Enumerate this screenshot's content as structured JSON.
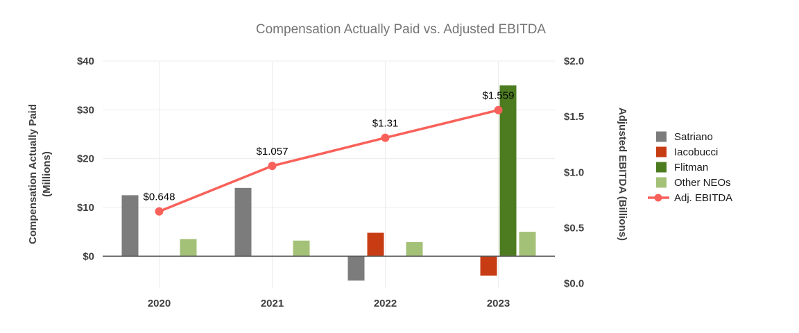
{
  "title": "Compensation Actually Paid vs. Adjusted EBITDA",
  "chart_data": {
    "type": "bar",
    "subtype": "grouped-bars-with-line",
    "title": "Compensation Actually Paid vs. Adjusted EBITDA",
    "categories": [
      "2020",
      "2021",
      "2022",
      "2023"
    ],
    "bar_series": [
      {
        "name": "Satriano",
        "color": "#7c7c7c",
        "values": [
          12.5,
          14,
          -5,
          null
        ]
      },
      {
        "name": "Iacobucci",
        "color": "#c83c14",
        "values": [
          null,
          null,
          4.8,
          -4
        ]
      },
      {
        "name": "Flitman",
        "color": "#4d7c20",
        "values": [
          null,
          null,
          null,
          35
        ]
      },
      {
        "name": "Other NEOs",
        "color": "#a4c178",
        "values": [
          3.5,
          3.2,
          2.9,
          5
        ]
      }
    ],
    "line_series": {
      "name": "Adj. EBITDA",
      "color": "#f8615a",
      "values": [
        0.648,
        1.057,
        1.31,
        1.559
      ],
      "point_labels": [
        "$0.648",
        "$1.057",
        "$1.31",
        "$1.559"
      ]
    },
    "left_axis": {
      "label_lines": [
        "Compensation Actually Paid",
        "(Millions)"
      ],
      "ticks": [
        0,
        10,
        20,
        30,
        40
      ],
      "tick_labels": [
        "$0",
        "$10",
        "$20",
        "$30",
        "$40"
      ],
      "range": [
        -6.5,
        40
      ]
    },
    "right_axis": {
      "label": "Adjusted EBITDA (Billions)",
      "ticks": [
        0,
        0.5,
        1,
        1.5,
        2
      ],
      "tick_labels": [
        "$0.0",
        "$0.5",
        "$1.0",
        "$1.5",
        "$2.0"
      ],
      "range": [
        -0.04,
        2.0
      ]
    },
    "legend": {
      "position": "right",
      "entries": [
        "Satriano",
        "Iacobucci",
        "Flitman",
        "Other NEOs",
        "Adj. EBITDA"
      ]
    },
    "grid": true,
    "zero_line_color": "#595959",
    "grid_color": "#ececec"
  }
}
